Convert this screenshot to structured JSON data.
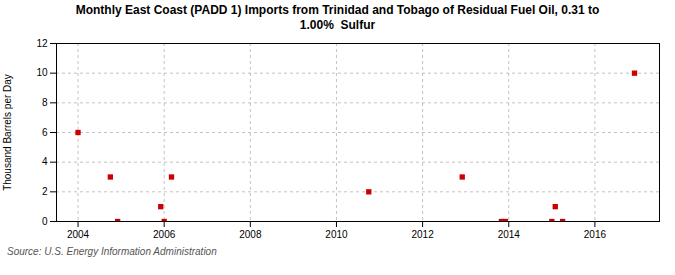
{
  "chart_data": {
    "type": "scatter",
    "title": "Monthly East Coast (PADD 1) Imports from Trinidad and Tobago of Residual Fuel Oil, 0.31 to\n1.00%  Sulfur",
    "ylabel": "Thousand Barrels per Day",
    "source": "Source: U.S. Energy Information Administration",
    "x": [
      2004.0,
      2004.75,
      2004.92,
      2005.92,
      2006.0,
      2006.17,
      2010.75,
      2012.92,
      2013.83,
      2013.92,
      2015.0,
      2015.08,
      2015.25,
      2016.92
    ],
    "values": [
      6.0,
      3.0,
      0.0,
      1.0,
      0.0,
      3.0,
      2.0,
      3.0,
      0.0,
      0.0,
      0.0,
      1.0,
      0.0,
      10.0
    ],
    "color": "#cc0000",
    "marker": "square",
    "xlim": [
      2003.5,
      2017.5
    ],
    "ylim": [
      0,
      12
    ],
    "xticks": [
      2004,
      2006,
      2008,
      2010,
      2012,
      2014,
      2016
    ],
    "yticks": [
      0,
      2,
      4,
      6,
      8,
      10,
      12
    ],
    "grid": true
  }
}
